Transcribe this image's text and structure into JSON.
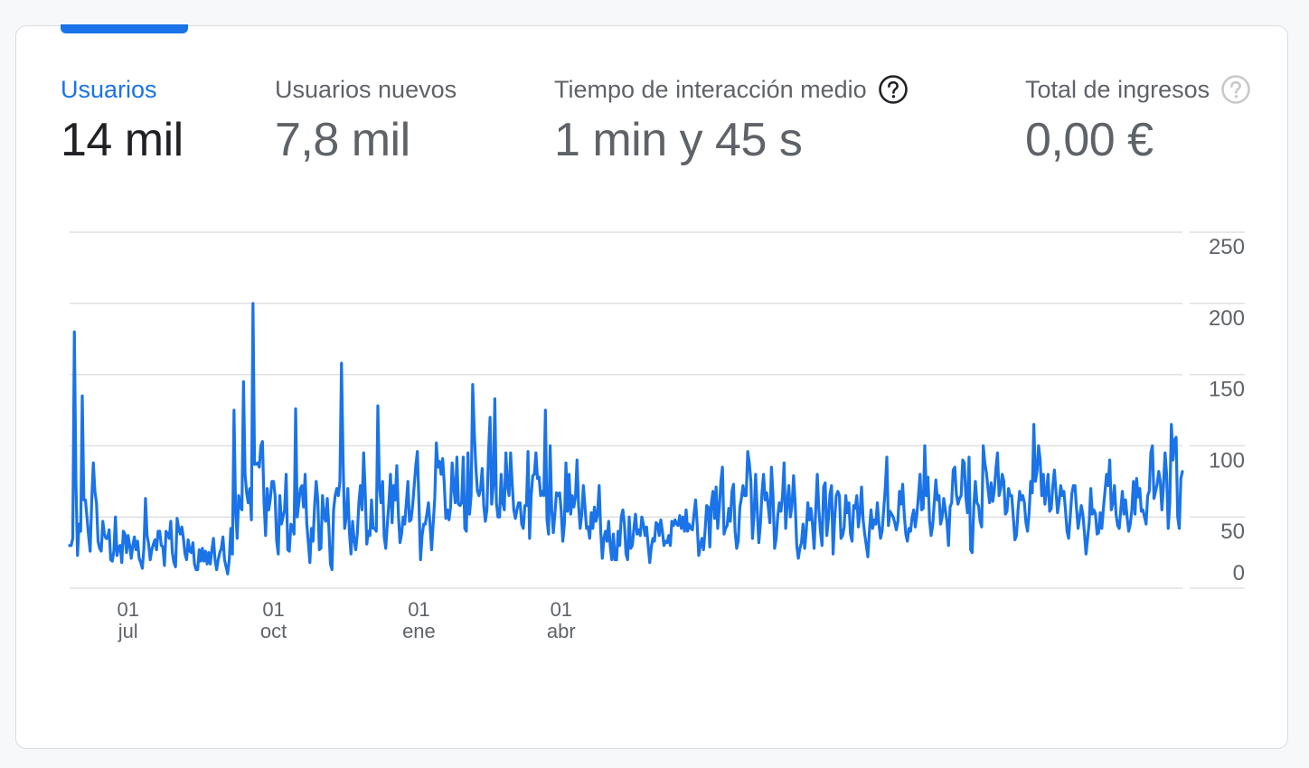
{
  "colors": {
    "accent": "#1a73e8",
    "line": "#1a73e8",
    "grid": "#e0e0e0"
  },
  "metrics": [
    {
      "label": "Usuarios",
      "value": "14 mil",
      "active": true,
      "help": false
    },
    {
      "label": "Usuarios nuevos",
      "value": "7,8 mil",
      "active": false,
      "help": false
    },
    {
      "label": "Tiempo de interacción medio",
      "value": "1 min y 45 s",
      "active": false,
      "help": true
    },
    {
      "label": "Total de ingresos",
      "value": "0,00 €",
      "active": false,
      "help": true
    }
  ],
  "chart_data": {
    "type": "line",
    "title": "",
    "xlabel": "",
    "ylabel": "",
    "ylim": [
      0,
      250
    ],
    "y_ticks": [
      "0",
      "50",
      "100",
      "150",
      "200",
      "250"
    ],
    "x_ticks": [
      {
        "day": "01",
        "month": "jul",
        "index": 37
      },
      {
        "day": "01",
        "month": "oct",
        "index": 129
      },
      {
        "day": "01",
        "month": "ene",
        "index": 221
      },
      {
        "day": "01",
        "month": "abr",
        "index": 311
      }
    ],
    "grid": true,
    "legend": "none",
    "series": [
      {
        "values": [
          30,
          30,
          35,
          180,
          75,
          23,
          45,
          40,
          135,
          62,
          62,
          50,
          37,
          26,
          62,
          88,
          68,
          60,
          33,
          28,
          26,
          47,
          38,
          35,
          35,
          41,
          20,
          19,
          26,
          50,
          23,
          29,
          30,
          18,
          40,
          38,
          25,
          37,
          30,
          21,
          30,
          36,
          27,
          33,
          21,
          18,
          14,
          28,
          63,
          37,
          31,
          20,
          27,
          31,
          34,
          27,
          40,
          40,
          30,
          29,
          16,
          40,
          38,
          35,
          47,
          25,
          18,
          15,
          49,
          42,
          38,
          43,
          35,
          24,
          20,
          34,
          26,
          25,
          32,
          17,
          13,
          13,
          27,
          19,
          28,
          19,
          26,
          17,
          25,
          17,
          27,
          35,
          20,
          13,
          20,
          25,
          28,
          36,
          20,
          15,
          10,
          20,
          42,
          24,
          125,
          55,
          35,
          65,
          57,
          55,
          145,
          80,
          67,
          60,
          70,
          48,
          200,
          87,
          87,
          88,
          85,
          100,
          103,
          60,
          37,
          70,
          55,
          63,
          75,
          75,
          65,
          33,
          24,
          65,
          45,
          50,
          55,
          80,
          27,
          26,
          45,
          43,
          38,
          126,
          50,
          60,
          70,
          72,
          57,
          80,
          46,
          32,
          18,
          42,
          33,
          58,
          75,
          62,
          27,
          28,
          65,
          50,
          47,
          63,
          43,
          17,
          13,
          55,
          65,
          70,
          65,
          75,
          158,
          90,
          42,
          50,
          70,
          40,
          24,
          47,
          34,
          27,
          38,
          60,
          72,
          55,
          95,
          68,
          31,
          40,
          37,
          62,
          42,
          42,
          40,
          128,
          72,
          60,
          75,
          36,
          28,
          45,
          60,
          80,
          46,
          72,
          62,
          86,
          52,
          32,
          38,
          50,
          45,
          60,
          75,
          47,
          48,
          58,
          72,
          86,
          96,
          60,
          20,
          37,
          45,
          45,
          52,
          60,
          45,
          27,
          45,
          63,
          102,
          85,
          89,
          80,
          91,
          74,
          49,
          55,
          48,
          57,
          88,
          71,
          60,
          92,
          59,
          58,
          60,
          92,
          42,
          40,
          95,
          52,
          65,
          143,
          110,
          85,
          68,
          65,
          70,
          84,
          58,
          47,
          55,
          95,
          120,
          59,
          72,
          133,
          60,
          50,
          50,
          80,
          60,
          55,
          95,
          72,
          65,
          95,
          73,
          55,
          49,
          55,
          60,
          60,
          45,
          42,
          58,
          58,
          96,
          35,
          65,
          79,
          80,
          95,
          77,
          78,
          65,
          68,
          65,
          125,
          48,
          38,
          100,
          55,
          39,
          52,
          67,
          65,
          67,
          54,
          33,
          45,
          88,
          54,
          80,
          52,
          65,
          57,
          64,
          90,
          58,
          42,
          52,
          72,
          58,
          42,
          43,
          35,
          53,
          42,
          57,
          47,
          52,
          72,
          40,
          21,
          35,
          40,
          33,
          47,
          30,
          20,
          38,
          20,
          20,
          40,
          30,
          50,
          55,
          45,
          24,
          20,
          50,
          28,
          30,
          42,
          52,
          38,
          41,
          37,
          50,
          45,
          37,
          43,
          30,
          18,
          29,
          35,
          33,
          46,
          45,
          37,
          48,
          40,
          30,
          33,
          32,
          37,
          30,
          47,
          44,
          48,
          45,
          44,
          51,
          42,
          50,
          40,
          55,
          40,
          45,
          42,
          41,
          52,
          62,
          45,
          23,
          30,
          35,
          27,
          40,
          58,
          57,
          29,
          60,
          68,
          49,
          71,
          42,
          56,
          75,
          85,
          38,
          42,
          44,
          56,
          47,
          68,
          73,
          40,
          28,
          33,
          57,
          63,
          72,
          65,
          65,
          96,
          88,
          75,
          35,
          52,
          80,
          55,
          32,
          45,
          67,
          80,
          62,
          67,
          57,
          46,
          85,
          65,
          28,
          35,
          51,
          60,
          54,
          65,
          88,
          42,
          60,
          72,
          50,
          58,
          79,
          60,
          30,
          21,
          28,
          32,
          45,
          28,
          40,
          60,
          48,
          56,
          44,
          28,
          55,
          80,
          55,
          40,
          30,
          71,
          74,
          37,
          48,
          66,
          72,
          24,
          49,
          65,
          68,
          65,
          35,
          37,
          43,
          65,
          53,
          60,
          38,
          33,
          58,
          56,
          65,
          43,
          53,
          71,
          48,
          38,
          30,
          22,
          41,
          55,
          42,
          48,
          45,
          60,
          45,
          35,
          40,
          55,
          70,
          92,
          44,
          54,
          52,
          50,
          46,
          41,
          47,
          68,
          59,
          73,
          52,
          38,
          33,
          42,
          40,
          50,
          55,
          43,
          52,
          65,
          80,
          55,
          56,
          100,
          65,
          78,
          48,
          37,
          44,
          60,
          76,
          62,
          65,
          45,
          50,
          63,
          55,
          47,
          30,
          57,
          60,
          83,
          85,
          66,
          59,
          63,
          65,
          90,
          88,
          64,
          53,
          92,
          27,
          25,
          57,
          75,
          60,
          58,
          47,
          43,
          100,
          88,
          81,
          70,
          60,
          74,
          61,
          69,
          84,
          95,
          65,
          70,
          80,
          75,
          52,
          54,
          70,
          65,
          65,
          50,
          34,
          37,
          55,
          68,
          62,
          65,
          60,
          46,
          40,
          53,
          75,
          67,
          115,
          75,
          82,
          100,
          90,
          65,
          80,
          59,
          68,
          80,
          54,
          56,
          72,
          83,
          68,
          53,
          61,
          72,
          65,
          68,
          55,
          40,
          35,
          50,
          66,
          72,
          72,
          56,
          42,
          50,
          58,
          52,
          39,
          24,
          35,
          46,
          70,
          52,
          55,
          52,
          38,
          39,
          53,
          42,
          56,
          68,
          80,
          72,
          90,
          55,
          60,
          72,
          52,
          44,
          42,
          55,
          68,
          52,
          62,
          50,
          40,
          45,
          55,
          75,
          52,
          77,
          64,
          70,
          54,
          55,
          50,
          45,
          65,
          68,
          95,
          100,
          63,
          68,
          73,
          82,
          75,
          55,
          72,
          95,
          80,
          42,
          60,
          115,
          90,
          104,
          106,
          50,
          42,
          77,
          82
        ]
      }
    ]
  }
}
